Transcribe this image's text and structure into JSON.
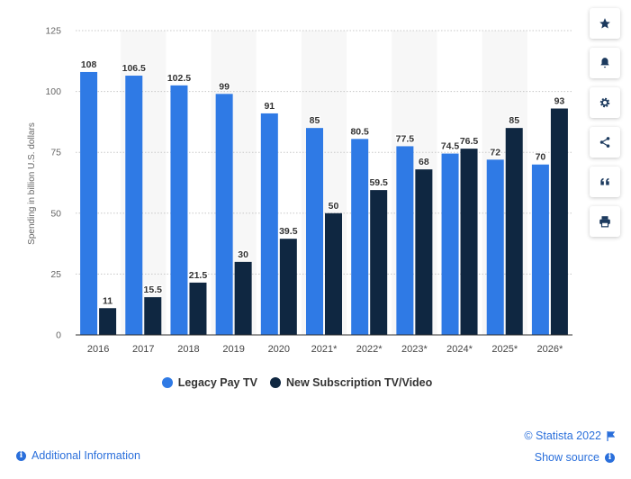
{
  "chart_data": {
    "type": "bar",
    "ylabel": "Spending in billion U.S. dollars",
    "xlabel": "",
    "ylim": [
      0,
      125
    ],
    "yticks": [
      0,
      25,
      50,
      75,
      100,
      125
    ],
    "categories": [
      "2016",
      "2017",
      "2018",
      "2019",
      "2020",
      "2021*",
      "2022*",
      "2023*",
      "2024*",
      "2025*",
      "2026*"
    ],
    "series": [
      {
        "name": "Legacy Pay TV",
        "color": "#2f7ae5",
        "values": [
          108,
          106.5,
          102.5,
          99,
          91,
          85,
          80.5,
          77.5,
          74.5,
          72,
          70
        ],
        "labels": [
          "108",
          "106.5",
          "102.5",
          "99",
          "91",
          "85",
          "80.5",
          "77.5",
          "74.5",
          "72",
          "70"
        ]
      },
      {
        "name": "New Subscription TV/Video",
        "color": "#0f2741",
        "values": [
          11,
          15.5,
          21.5,
          30,
          39.5,
          50,
          59.5,
          68,
          76.5,
          85,
          93
        ],
        "labels": [
          "11",
          "15.5",
          "21.5",
          "30",
          "39.5",
          "50",
          "59.5",
          "68",
          "76.5",
          "85",
          "93"
        ]
      }
    ],
    "grid": true,
    "legend": "bottom-center"
  },
  "sidebar": [
    "star-icon",
    "bell-icon",
    "gear-icon",
    "share-icon",
    "quote-icon",
    "print-icon"
  ],
  "footer": {
    "copyright": "© Statista 2022",
    "additional_info": "Additional Information",
    "show_source": "Show source"
  }
}
